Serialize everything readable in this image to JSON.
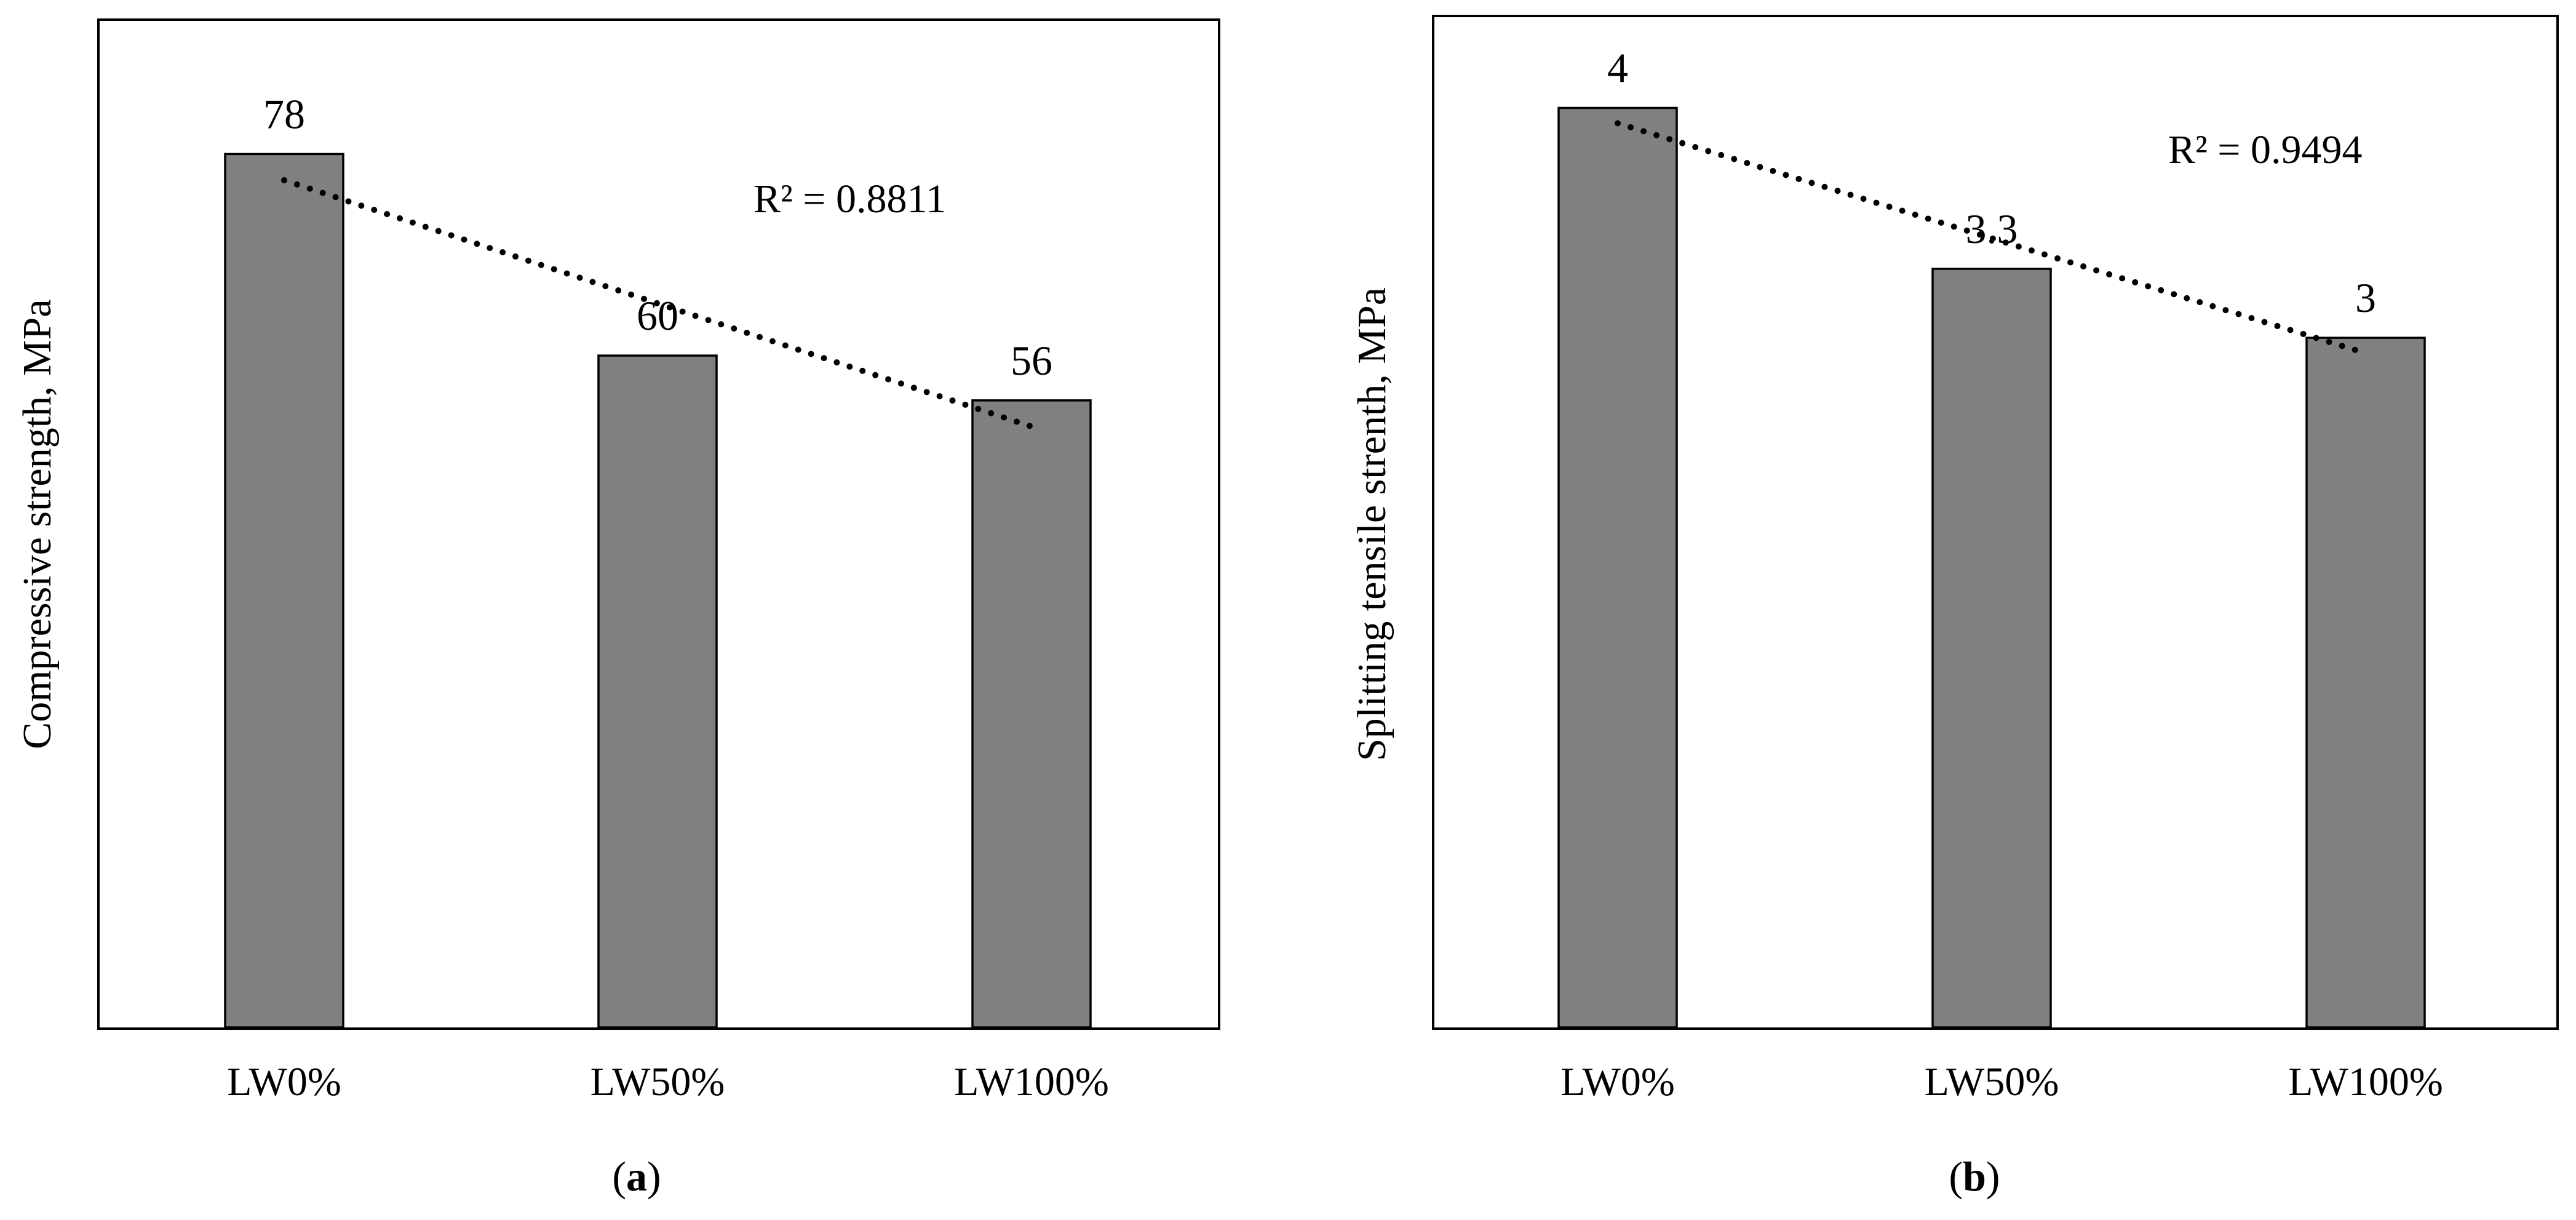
{
  "chart_data": [
    {
      "type": "bar",
      "panel": "(a)",
      "panel_prefix": "(",
      "panel_letter": "a",
      "panel_suffix": ")",
      "title": "",
      "xlabel": "",
      "ylabel": "Compressive strength, MPa",
      "categories": [
        "LW0%",
        "LW50%",
        "LW100%"
      ],
      "values": [
        78,
        60,
        56
      ],
      "data_labels": [
        "78",
        "60",
        "56"
      ],
      "ylim": [
        0,
        90
      ],
      "yticks_shown": false,
      "grid": false,
      "bar_color": "#808080",
      "trendline": {
        "type": "linear",
        "style": "dotted",
        "r2_label": "R² = 0.8811",
        "label_position": "top-right"
      }
    },
    {
      "type": "bar",
      "panel": "(b)",
      "panel_prefix": "(",
      "panel_letter": "b",
      "panel_suffix": ")",
      "title": "",
      "xlabel": "",
      "ylabel": "Splitting tensile strenth, MPa",
      "categories": [
        "LW0%",
        "LW50%",
        "LW100%"
      ],
      "values": [
        4,
        3.3,
        3
      ],
      "data_labels": [
        "4",
        "3.3",
        "3"
      ],
      "ylim": [
        0,
        4.4
      ],
      "yticks_shown": false,
      "grid": false,
      "bar_color": "#808080",
      "trendline": {
        "type": "linear",
        "style": "dotted",
        "r2_label": "R² = 0.9494",
        "label_position": "top-right"
      }
    }
  ]
}
